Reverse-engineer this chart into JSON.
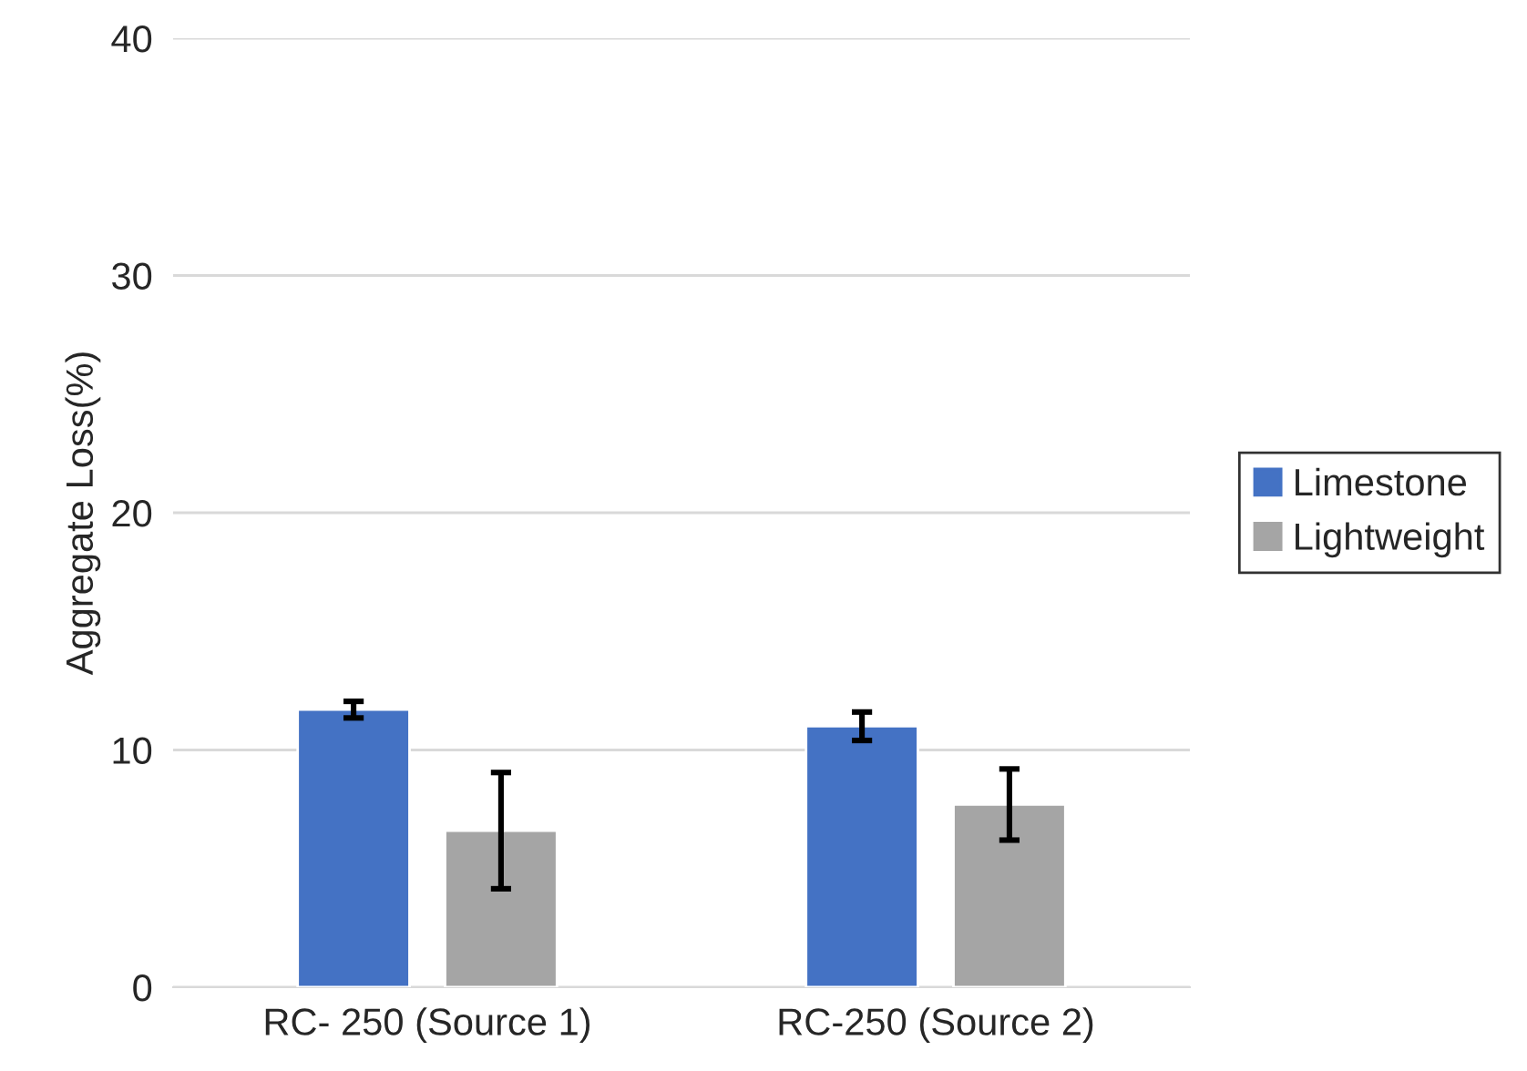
{
  "chart_data": {
    "type": "bar",
    "ylabel": "Aggregate Loss(%)",
    "categories": [
      "RC- 250 (Source 1)",
      "RC-250 (Source 2)"
    ],
    "series": [
      {
        "name": "Limestone",
        "color": "#4472c4",
        "values": [
          11.7,
          11.0
        ],
        "errors": [
          0.35,
          0.6
        ]
      },
      {
        "name": "Lightweight",
        "color": "#a5a5a5",
        "values": [
          6.6,
          7.7
        ],
        "errors": [
          2.45,
          1.5
        ]
      }
    ],
    "ylim": [
      0,
      40
    ],
    "yticks": [
      0,
      10,
      20,
      30,
      40
    ],
    "grid": "y",
    "legend": "right"
  }
}
